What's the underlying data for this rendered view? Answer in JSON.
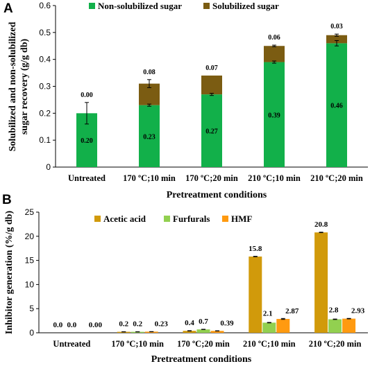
{
  "panels": {
    "a_letter": "A",
    "b_letter": "B"
  },
  "chart_data": [
    {
      "type": "bar",
      "stacked": true,
      "categories": [
        "Untreated",
        "170 ºC;10 min",
        "170 ºC;20 min",
        "210 ºC;10 min",
        "210 ºC;20 min"
      ],
      "series": [
        {
          "name": "Non-solubilized sugar",
          "color": "#12b04a",
          "values": [
            0.2,
            0.23,
            0.27,
            0.39,
            0.46
          ],
          "labels": [
            "0.20",
            "0.23",
            "0.27",
            "0.39",
            "0.46"
          ],
          "error": [
            0.04,
            0.004,
            0.004,
            0.004,
            0.01
          ]
        },
        {
          "name": "Solubilized sugar",
          "color": "#7b5c12",
          "values": [
            0.0,
            0.08,
            0.07,
            0.06,
            0.03
          ],
          "labels": [
            "0.00",
            "0.08",
            "0.07",
            "0.06",
            "0.03"
          ],
          "error": [
            0,
            0.015,
            0,
            0.003,
            0.004
          ]
        }
      ],
      "xlabel": "Pretreatment conditions",
      "ylabel": [
        "Solubilized and non-solubilized",
        "sugar recovery (g/g db)"
      ],
      "ylim": [
        0,
        0.6
      ],
      "yticks": [
        "0",
        "0.1",
        "0.2",
        "0.3",
        "0.4",
        "0.5",
        "0.6"
      ],
      "legend_position": "top"
    },
    {
      "type": "bar",
      "categories": [
        "Untreated",
        "170 ºC;10 min",
        "170 ºC;20 min",
        "210 ºC;10 min",
        "210 ºC;20 min"
      ],
      "series": [
        {
          "name": "Acetic acid",
          "color": "#d19a0b",
          "values": [
            0.0,
            0.2,
            0.4,
            15.8,
            20.8
          ],
          "labels": [
            "0.0",
            "0.2",
            "0.4",
            "15.8",
            "20.8"
          ],
          "error": [
            0,
            0.02,
            0.04,
            0.05,
            0.05
          ]
        },
        {
          "name": "Furfurals",
          "color": "#92d050",
          "values": [
            0.0,
            0.2,
            0.7,
            2.1,
            2.8
          ],
          "labels": [
            "0.0",
            "0.2",
            "0.7",
            "2.1",
            "2.8"
          ],
          "error": [
            0,
            0.02,
            0.03,
            0.05,
            0.05
          ]
        },
        {
          "name": "HMF",
          "color": "#ff9a10",
          "values": [
            0.0,
            0.23,
            0.39,
            2.87,
            2.93
          ],
          "labels": [
            "0.00",
            "0.23",
            "0.39",
            "2.87",
            "2.93"
          ],
          "error": [
            0,
            0.02,
            0.03,
            0.1,
            0.05
          ]
        }
      ],
      "xlabel": "Pretreatment conditions",
      "ylabel": [
        "Inhibitor generation (%/g db)"
      ],
      "ylim": [
        0,
        25
      ],
      "yticks": [
        "0",
        "5",
        "10",
        "15",
        "20",
        "25"
      ],
      "legend_position": "top"
    }
  ]
}
